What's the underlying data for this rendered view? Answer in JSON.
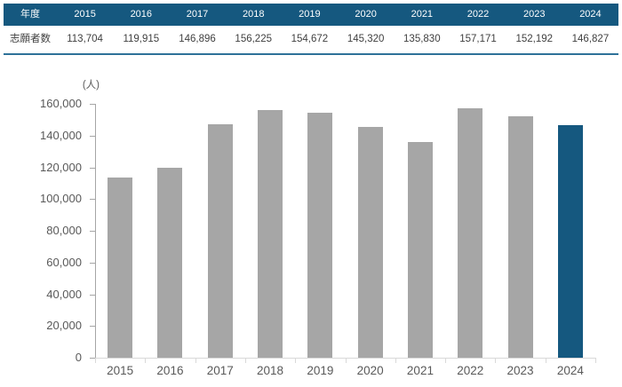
{
  "page": {
    "background": "#FFFFFF"
  },
  "table": {
    "header_label": "年度",
    "row_label": "志願者数",
    "years": [
      "2015",
      "2016",
      "2017",
      "2018",
      "2019",
      "2020",
      "2021",
      "2022",
      "2023",
      "2024"
    ],
    "values": [
      "113,704",
      "119,915",
      "146,896",
      "156,225",
      "154,672",
      "145,320",
      "135,830",
      "157,171",
      "152,192",
      "146,827"
    ]
  },
  "chart_data": {
    "type": "bar",
    "title": "",
    "unit_label": "(人)",
    "categories": [
      "2015",
      "2016",
      "2017",
      "2018",
      "2019",
      "2020",
      "2021",
      "2022",
      "2023",
      "2024"
    ],
    "values": [
      113704,
      119915,
      146896,
      156225,
      154672,
      145320,
      135830,
      157171,
      152192,
      146827
    ],
    "xlabel": "",
    "ylabel": "(人)",
    "ylim": [
      0,
      160000
    ],
    "ytick_interval": 20000,
    "ytick_labels": [
      "0",
      "20,000",
      "40,000",
      "60,000",
      "80,000",
      "100,000",
      "120,000",
      "140,000",
      "160,000"
    ],
    "grid": false,
    "legend": false,
    "bar_color_default": "#A6A6A6",
    "bar_color_highlight": "#15587F",
    "highlight_index": 9
  },
  "colors": {
    "header_bg": "#15587F",
    "header_text": "#FFFFFF",
    "table_border_bottom": "#2E7199",
    "y_axis_line": "#A6A6A6",
    "x_axis_line": "#D9D9D9",
    "axis_text": "#595959",
    "value_text": "#404040"
  }
}
